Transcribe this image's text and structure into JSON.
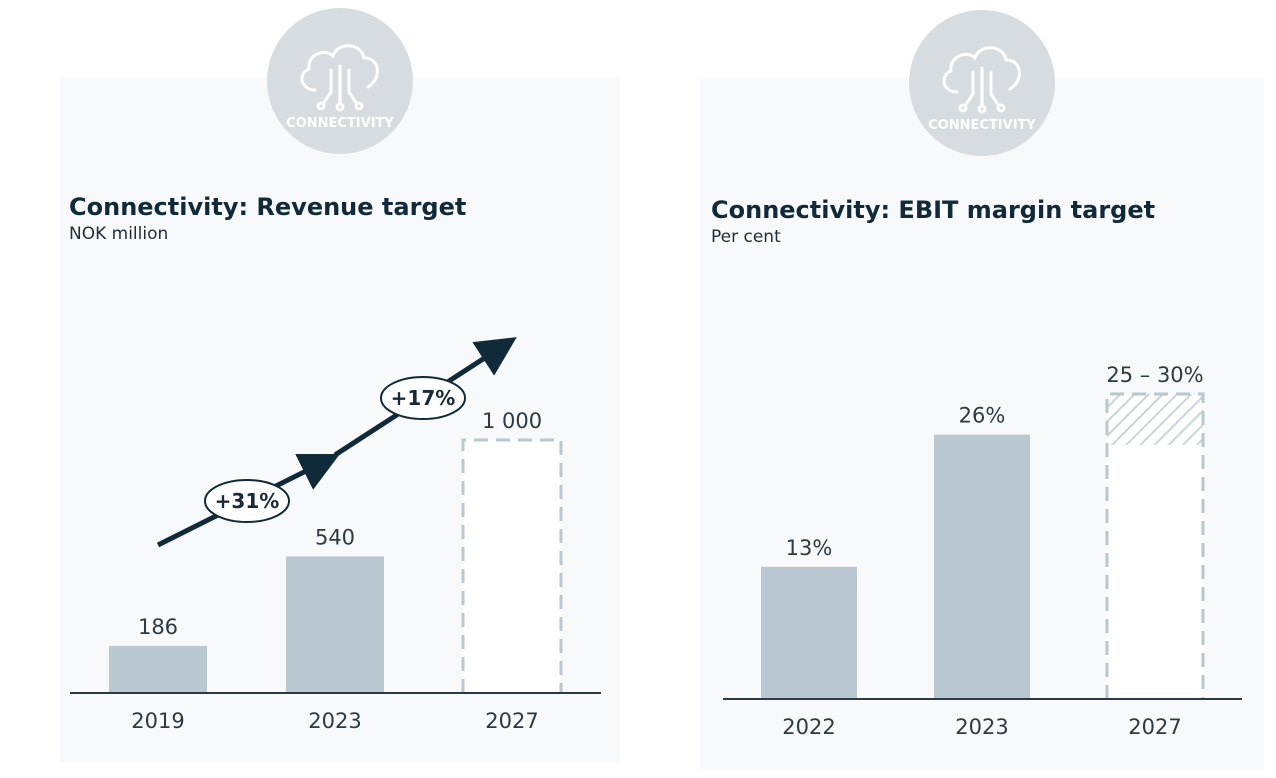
{
  "logo": {
    "text": "CONNECTIVITY",
    "icon": "cloud-circuit-icon"
  },
  "colors": {
    "bar": "#b8c7d0",
    "axis": "#2b3a44",
    "title": "#102a3a",
    "panel_bg": "#f8f9fa",
    "logo_bg": "#d6dcdf",
    "dashed": "#b8c7d0",
    "arrow": "#102a3a"
  },
  "chart_data": [
    {
      "type": "bar",
      "title": "Connectivity: Revenue target",
      "subtitle": "NOK million",
      "categories": [
        "2019",
        "2023",
        "2027"
      ],
      "values": [
        186,
        540,
        1000
      ],
      "value_labels": [
        "186",
        "540",
        "1 000"
      ],
      "target_flags": [
        false,
        false,
        true
      ],
      "ylim": [
        0,
        1000
      ],
      "growth": [
        {
          "label": "+31%",
          "from": "2019",
          "to": "2023"
        },
        {
          "label": "+17%",
          "from": "2023",
          "to": "2027"
        }
      ],
      "grid": false,
      "legend": "none"
    },
    {
      "type": "bar",
      "title": "Connectivity: EBIT margin target",
      "subtitle": "Per cent",
      "categories": [
        "2022",
        "2023",
        "2027"
      ],
      "values": [
        13,
        26,
        30
      ],
      "range_low": [
        null,
        null,
        25
      ],
      "value_labels": [
        "13%",
        "26%",
        "25 – 30%"
      ],
      "target_flags": [
        false,
        false,
        true
      ],
      "ylim": [
        0,
        30
      ],
      "grid": false,
      "legend": "none"
    }
  ]
}
